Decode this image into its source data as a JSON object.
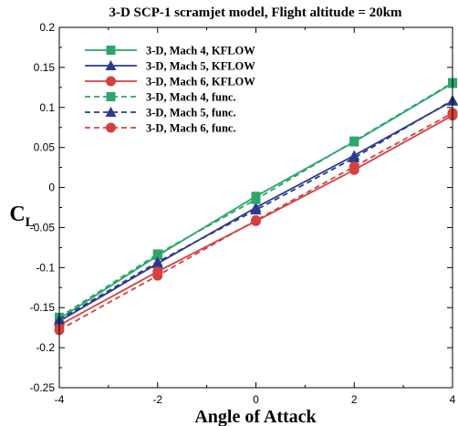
{
  "chart_data": {
    "type": "line",
    "title": "3-D SCP-1 scramjet model, Flight altitude = 20km",
    "xlabel": "Angle of Attack",
    "ylabel": "C",
    "ylabel_subscript": "L",
    "xlim": [
      -4,
      4
    ],
    "ylim": [
      -0.25,
      0.2
    ],
    "xticks": [
      -4,
      -2,
      0,
      2,
      4
    ],
    "yticks": [
      -0.25,
      -0.2,
      -0.15,
      -0.1,
      -0.05,
      0,
      0.05,
      0.1,
      0.15,
      0.2
    ],
    "xtick_labels": [
      "-4",
      "-2",
      "0",
      "2",
      "4"
    ],
    "ytick_labels": [
      "-0.25",
      "-0.2",
      "-0.15",
      "-0.1",
      "-0.05",
      "0",
      "0.05",
      "0.1",
      "0.15",
      "0.2"
    ],
    "grid": false,
    "legend_position": "top-left",
    "x": [
      -4,
      -2,
      0,
      2,
      4
    ],
    "series": [
      {
        "name": "3-D, Mach 4, KFLOW",
        "values": [
          -0.164,
          -0.085,
          -0.011,
          0.057,
          0.13
        ],
        "color": "#2ca66b",
        "dash": "solid",
        "marker": "square"
      },
      {
        "name": "3-D, Mach 5, KFLOW",
        "values": [
          -0.167,
          -0.095,
          -0.025,
          0.04,
          0.108
        ],
        "color": "#2a3a8f",
        "dash": "solid",
        "marker": "triangle"
      },
      {
        "name": "3-D, Mach 6, KFLOW",
        "values": [
          -0.172,
          -0.105,
          -0.042,
          0.022,
          0.09
        ],
        "color": "#d64040",
        "dash": "solid",
        "marker": "circle"
      },
      {
        "name": "3-D, Mach 4, func.",
        "values": [
          -0.162,
          -0.083,
          -0.015,
          0.058,
          0.131
        ],
        "color": "#2ca66b",
        "dash": "dashed",
        "marker": "square"
      },
      {
        "name": "3-D, Mach 5, func.",
        "values": [
          -0.165,
          -0.093,
          -0.028,
          0.037,
          0.109
        ],
        "color": "#2a3a8f",
        "dash": "dashed",
        "marker": "triangle"
      },
      {
        "name": "3-D, Mach 6, func.",
        "values": [
          -0.178,
          -0.11,
          -0.041,
          0.026,
          0.093
        ],
        "color": "#d64040",
        "dash": "dashed",
        "marker": "circle"
      }
    ]
  }
}
